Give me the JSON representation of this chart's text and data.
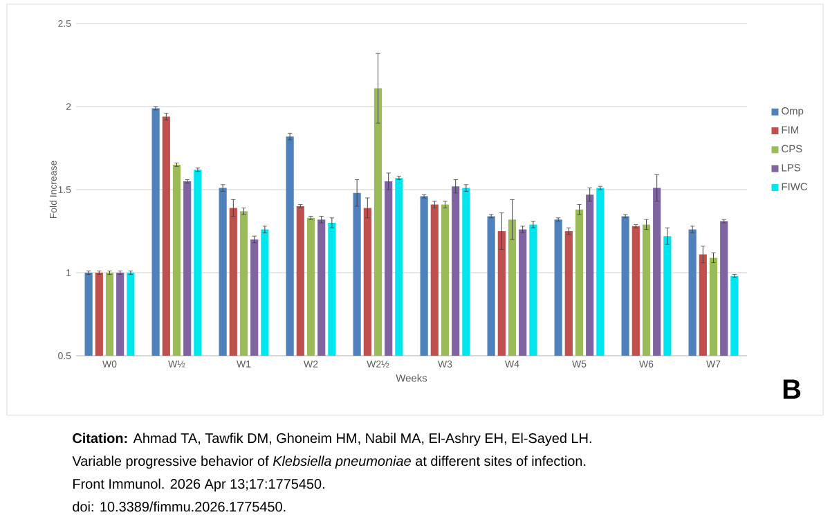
{
  "chart_data": {
    "type": "bar",
    "xlabel": "Weeks",
    "ylabel": "Fold Increase",
    "categories": [
      "W0",
      "W½",
      "W1",
      "W2",
      "W2½",
      "W3",
      "W4",
      "W5",
      "W6",
      "W7"
    ],
    "series": [
      {
        "name": "Omp",
        "color": "#4f81bd",
        "values": [
          1.0,
          1.99,
          1.51,
          1.82,
          1.48,
          1.46,
          1.34,
          1.32,
          1.34,
          1.26
        ],
        "errors": [
          0.01,
          0.01,
          0.02,
          0.02,
          0.08,
          0.01,
          0.01,
          0.01,
          0.01,
          0.02
        ]
      },
      {
        "name": "FIM",
        "color": "#c0504d",
        "values": [
          1.0,
          1.94,
          1.39,
          1.4,
          1.39,
          1.41,
          1.25,
          1.25,
          1.28,
          1.11
        ],
        "errors": [
          0.01,
          0.02,
          0.05,
          0.01,
          0.06,
          0.02,
          0.11,
          0.02,
          0.01,
          0.05
        ]
      },
      {
        "name": "CPS",
        "color": "#9bbb59",
        "values": [
          1.0,
          1.65,
          1.37,
          1.33,
          2.11,
          1.41,
          1.32,
          1.38,
          1.29,
          1.09
        ],
        "errors": [
          0.01,
          0.01,
          0.02,
          0.01,
          0.21,
          0.02,
          0.12,
          0.03,
          0.03,
          0.03
        ]
      },
      {
        "name": "LPS",
        "color": "#8064a2",
        "values": [
          1.0,
          1.55,
          1.2,
          1.32,
          1.55,
          1.52,
          1.26,
          1.47,
          1.51,
          1.31
        ],
        "errors": [
          0.01,
          0.01,
          0.02,
          0.02,
          0.05,
          0.04,
          0.02,
          0.04,
          0.08,
          0.01
        ]
      },
      {
        "name": "FIWC",
        "color": "#00e5ee",
        "values": [
          1.0,
          1.62,
          1.26,
          1.3,
          1.57,
          1.51,
          1.29,
          1.51,
          1.22,
          0.98
        ],
        "errors": [
          0.01,
          0.01,
          0.02,
          0.03,
          0.01,
          0.02,
          0.02,
          0.01,
          0.05,
          0.01
        ]
      }
    ],
    "ylim": [
      0.5,
      2.5
    ],
    "yticks": [
      0.5,
      1,
      1.5,
      2,
      2.5
    ],
    "grid": "y",
    "legend": "right",
    "annotations": [
      "B",
      "**Citation:** Ahmad TA, Tawfik DM, Ghoneim HM, Nabil MA, El-Ashry EH, El-Sayed LH.",
      "Variable progressive behavior of *Klebsiella pneumoniae* at different sites of infection.",
      "Front Immunol. 2026 Apr 13;17:1775450.",
      "doi: 10.3389/fimmu.2026.1775450."
    ]
  }
}
